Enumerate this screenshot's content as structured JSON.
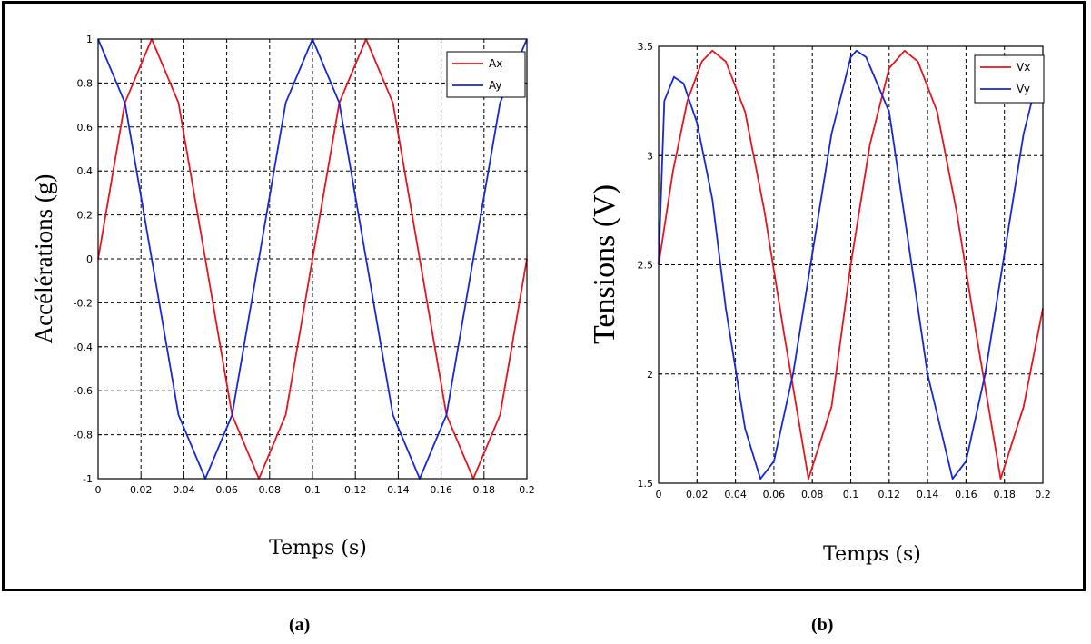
{
  "captions": {
    "a": "(a)",
    "b": "(b)"
  },
  "colors": {
    "series_red": "#e8141b",
    "series_blue": "#1428d8",
    "grid": "#000000",
    "frame": "#000000"
  },
  "chart_data": [
    {
      "type": "line",
      "xlabel": "Temps (s)",
      "ylabel": "Accélérations (g)",
      "xlim": [
        0,
        0.2
      ],
      "ylim": [
        -1,
        1
      ],
      "grid": true,
      "legend_position": "top-right",
      "x_ticks": [
        0,
        0.02,
        0.04,
        0.06,
        0.08,
        0.1,
        0.12,
        0.14,
        0.16,
        0.18,
        0.2
      ],
      "x_tick_labels": [
        "0",
        "0.02",
        "0.04",
        "0.06",
        "0.08",
        "0.1",
        "0.12",
        "0.14",
        "0.16",
        "0.18",
        "0.2"
      ],
      "y_ticks": [
        -1,
        -0.8,
        -0.6,
        -0.4,
        -0.2,
        0,
        0.2,
        0.4,
        0.6,
        0.8,
        1
      ],
      "y_tick_labels": [
        "-1",
        "-0.8",
        "-0.6",
        "-0.4",
        "-0.2",
        "0",
        "0.2",
        "0.4",
        "0.6",
        "0.8",
        "1"
      ],
      "series": [
        {
          "name": "Ax",
          "color": "#e8141b",
          "x": [
            0,
            0.0125,
            0.025,
            0.0375,
            0.05,
            0.0625,
            0.075,
            0.0875,
            0.1,
            0.1125,
            0.125,
            0.1375,
            0.15,
            0.1625,
            0.175,
            0.1875,
            0.2
          ],
          "y": [
            0,
            0.71,
            1,
            0.71,
            0,
            -0.71,
            -1,
            -0.71,
            0,
            0.71,
            1,
            0.71,
            0,
            -0.71,
            -1,
            -0.71,
            0
          ]
        },
        {
          "name": "Ay",
          "color": "#1428d8",
          "x": [
            0,
            0.0125,
            0.025,
            0.0375,
            0.05,
            0.0625,
            0.075,
            0.0875,
            0.1,
            0.1125,
            0.125,
            0.1375,
            0.15,
            0.1625,
            0.175,
            0.1875,
            0.2
          ],
          "y": [
            1,
            0.71,
            0,
            -0.71,
            -1,
            -0.71,
            0,
            0.71,
            1,
            0.71,
            0,
            -0.71,
            -1,
            -0.71,
            0,
            0.71,
            1
          ]
        }
      ]
    },
    {
      "type": "line",
      "xlabel": "Temps (s)",
      "ylabel": "Tensions (V)",
      "xlim": [
        0,
        0.2
      ],
      "ylim": [
        1.5,
        3.5
      ],
      "grid": true,
      "legend_position": "top-right",
      "x_ticks": [
        0,
        0.02,
        0.04,
        0.06,
        0.08,
        0.1,
        0.12,
        0.14,
        0.16,
        0.18,
        0.2
      ],
      "x_tick_labels": [
        "0",
        "0.02",
        "0.04",
        "0.06",
        "0.08",
        "0.1",
        "0.12",
        "0.14",
        "0.16",
        "0.18",
        "0.2"
      ],
      "y_ticks": [
        1.5,
        2,
        2.5,
        3,
        3.5
      ],
      "y_tick_labels": [
        "1.5",
        "2",
        "2.5",
        "3",
        "3.5"
      ],
      "series": [
        {
          "name": "Vx",
          "color": "#e8141b",
          "x": [
            0,
            0.0075,
            0.015,
            0.0225,
            0.028,
            0.035,
            0.045,
            0.055,
            0.065,
            0.078,
            0.09,
            0.1,
            0.11,
            0.12,
            0.128,
            0.135,
            0.145,
            0.155,
            0.165,
            0.178,
            0.19,
            0.2
          ],
          "y": [
            2.5,
            2.93,
            3.25,
            3.43,
            3.48,
            3.43,
            3.2,
            2.75,
            2.2,
            1.52,
            1.85,
            2.5,
            3.05,
            3.4,
            3.48,
            3.43,
            3.2,
            2.75,
            2.2,
            1.52,
            1.85,
            2.3
          ]
        },
        {
          "name": "Vy",
          "color": "#1428d8",
          "x": [
            0,
            0.003,
            0.008,
            0.013,
            0.02,
            0.028,
            0.035,
            0.045,
            0.053,
            0.06,
            0.07,
            0.08,
            0.09,
            0.1,
            0.103,
            0.108,
            0.12,
            0.13,
            0.14,
            0.153,
            0.16,
            0.17,
            0.18,
            0.19,
            0.2
          ],
          "y": [
            2.5,
            3.25,
            3.36,
            3.33,
            3.15,
            2.8,
            2.3,
            1.75,
            1.52,
            1.6,
            2.0,
            2.55,
            3.1,
            3.45,
            3.48,
            3.45,
            3.2,
            2.6,
            2.0,
            1.52,
            1.6,
            2.0,
            2.55,
            3.1,
            3.45
          ]
        }
      ]
    }
  ]
}
